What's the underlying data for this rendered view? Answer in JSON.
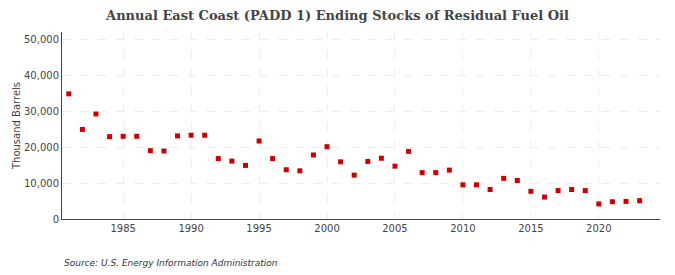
{
  "chart_data": {
    "type": "scatter",
    "title": "Annual East Coast (PADD 1) Ending Stocks of Residual Fuel Oil",
    "ylabel": "Thousand Barrels",
    "source": "Source: U.S. Energy Information Administration",
    "x": [
      1981,
      1982,
      1983,
      1984,
      1985,
      1986,
      1987,
      1988,
      1989,
      1990,
      1991,
      1992,
      1993,
      1994,
      1995,
      1996,
      1997,
      1998,
      1999,
      2000,
      2001,
      2002,
      2003,
      2004,
      2005,
      2006,
      2007,
      2008,
      2009,
      2010,
      2011,
      2012,
      2013,
      2014,
      2015,
      2016,
      2017,
      2018,
      2019,
      2020,
      2021,
      2022,
      2023
    ],
    "values": [
      34800,
      24900,
      29200,
      22900,
      23000,
      23000,
      19000,
      18900,
      23100,
      23300,
      23300,
      16800,
      16100,
      14900,
      21700,
      16800,
      13700,
      13400,
      17800,
      20100,
      15900,
      12200,
      16000,
      16900,
      14700,
      18800,
      12900,
      12900,
      13600,
      9500,
      9500,
      8200,
      11300,
      10700,
      7700,
      6100,
      7900,
      8200,
      7900,
      4200,
      4800,
      4900,
      5100
    ],
    "color": "#cc0000",
    "marker": "square",
    "xlim": [
      1980.5,
      2024.5
    ],
    "xticks": [
      1985,
      1990,
      1995,
      2000,
      2005,
      2010,
      2015,
      2020
    ],
    "ylim": [
      0,
      52000
    ],
    "yticks": [
      0,
      {
        "value": 10000,
        "label": "10,000"
      },
      {
        "value": 20000,
        "label": "20,000"
      },
      {
        "value": 30000,
        "label": "30,000"
      },
      {
        "value": 40000,
        "label": "40,000"
      },
      {
        "value": 50000,
        "label": "50,000"
      }
    ],
    "grid": true
  }
}
